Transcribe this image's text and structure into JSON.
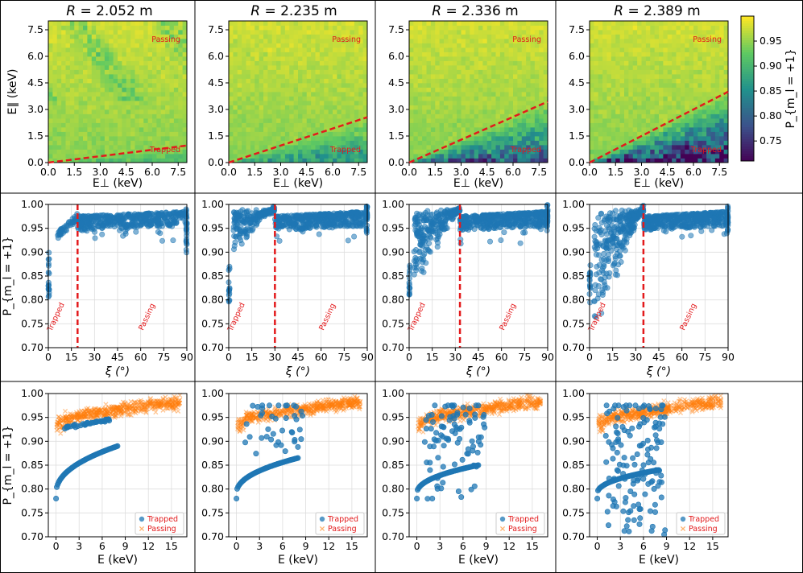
{
  "chart_data": {
    "type": "figure-grid",
    "colors": {
      "trapped": "#1f77b4",
      "passing": "#ff7f0e",
      "threshold": "#e31a1c",
      "annotation": "#e31a1c",
      "grid": "#dddddd"
    },
    "columns": [
      {
        "title": "R = 2.052 m",
        "R_value": "2.052",
        "threshold_deg": 19,
        "slope": 0.12,
        "dip": 0.05,
        "trapped_floor": 0.78
      },
      {
        "title": "R = 2.235 m",
        "R_value": "2.235",
        "threshold_deg": 30,
        "slope": 0.32,
        "dip": 0.1,
        "trapped_floor": 0.78
      },
      {
        "title": "R = 2.336 m",
        "R_value": "2.336",
        "threshold_deg": 33,
        "slope": 0.43,
        "dip": 0.18,
        "trapped_floor": 0.78
      },
      {
        "title": "R = 2.389 m",
        "R_value": "2.389",
        "threshold_deg": 35,
        "slope": 0.5,
        "dip": 0.26,
        "trapped_floor": 0.78
      }
    ],
    "row1_heatmap": {
      "type": "heatmap",
      "xlabel": "E⊥ (keV)",
      "ylabel": "E∥ (keV)",
      "xlim": [
        0,
        8
      ],
      "ylim": [
        0,
        8
      ],
      "xticks": [
        "0.0",
        "1.5",
        "3.0",
        "4.5",
        "6.0",
        "7.5"
      ],
      "yticks": [
        "0.0",
        "1.5",
        "3.0",
        "4.5",
        "6.0",
        "7.5"
      ],
      "region_labels": {
        "upper": "Passing",
        "lower": "Trapped"
      },
      "colorbar": {
        "label": "P_{m_l = +1}",
        "min": 0.71,
        "max": 1.0,
        "ticks": [
          "0.75",
          "0.80",
          "0.85",
          "0.90",
          "0.95"
        ]
      }
    },
    "row2_scatter": {
      "type": "scatter",
      "xlabel": "ξ (°)",
      "ylabel": "P_{m_l = +1}",
      "xlim": [
        0,
        90
      ],
      "ylim": [
        0.7,
        1.0
      ],
      "xticks": [
        "0",
        "15",
        "30",
        "45",
        "60",
        "75",
        "90"
      ],
      "yticks": [
        "0.70",
        "0.75",
        "0.80",
        "0.85",
        "0.90",
        "0.95",
        "1.00"
      ],
      "region_labels": {
        "left": "Trapped",
        "right": "Passing"
      }
    },
    "row3_scatter": {
      "type": "scatter",
      "xlabel": "E (keV)",
      "ylabel": "P_{m_l = +1}",
      "xlim": [
        -1,
        17
      ],
      "ylim": [
        0.7,
        1.0
      ],
      "xticks": [
        "0",
        "3",
        "6",
        "9",
        "12",
        "15"
      ],
      "yticks": [
        "0.70",
        "0.75",
        "0.80",
        "0.85",
        "0.90",
        "0.95",
        "1.00"
      ],
      "series": [
        {
          "name": "Trapped",
          "marker": "circle"
        },
        {
          "name": "Passing",
          "marker": "x"
        }
      ]
    }
  }
}
